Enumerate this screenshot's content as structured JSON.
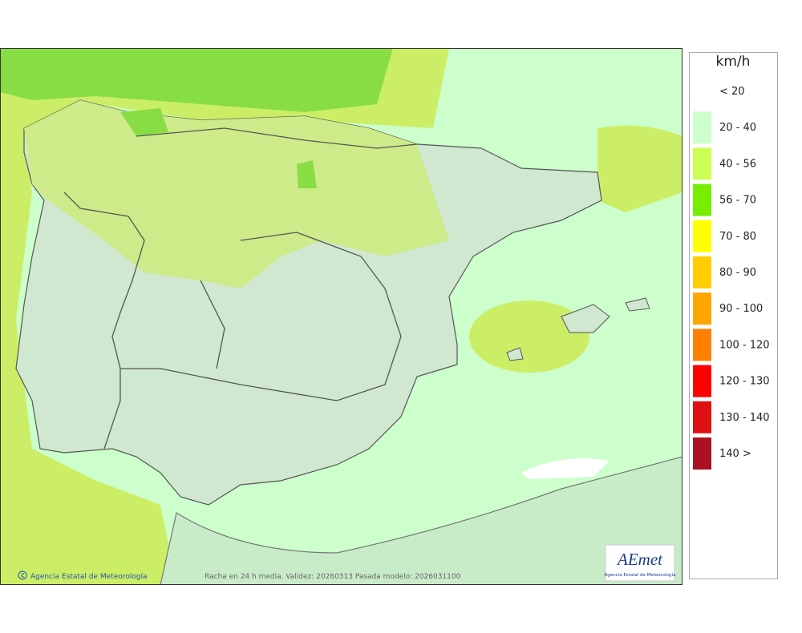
{
  "legend": {
    "unit": "km/h",
    "items": [
      {
        "label": "< 20",
        "color": "#ffffff"
      },
      {
        "label": "20 - 40",
        "color": "#ccffcc"
      },
      {
        "label": "40 - 56",
        "color": "#ccff55"
      },
      {
        "label": "56 - 70",
        "color": "#77ee00"
      },
      {
        "label": "70 - 80",
        "color": "#ffff00"
      },
      {
        "label": "80 - 90",
        "color": "#ffcc00"
      },
      {
        "label": "90 - 100",
        "color": "#ffa500"
      },
      {
        "label": "100 - 120",
        "color": "#ff7f00"
      },
      {
        "label": "120 - 130",
        "color": "#ff0000"
      },
      {
        "label": "130 - 140",
        "color": "#dd1111"
      },
      {
        "label": "140 >",
        "color": "#aa1122"
      }
    ]
  },
  "footer": {
    "credit": "Agencia Estatal de Meteorología",
    "caption": "Racha en 24 h media. Validez: 20260313 Pasada modelo: 2026031100"
  },
  "logo": {
    "name": "AEmet",
    "subtitle": "Agencia Estatal de Meteorología"
  }
}
